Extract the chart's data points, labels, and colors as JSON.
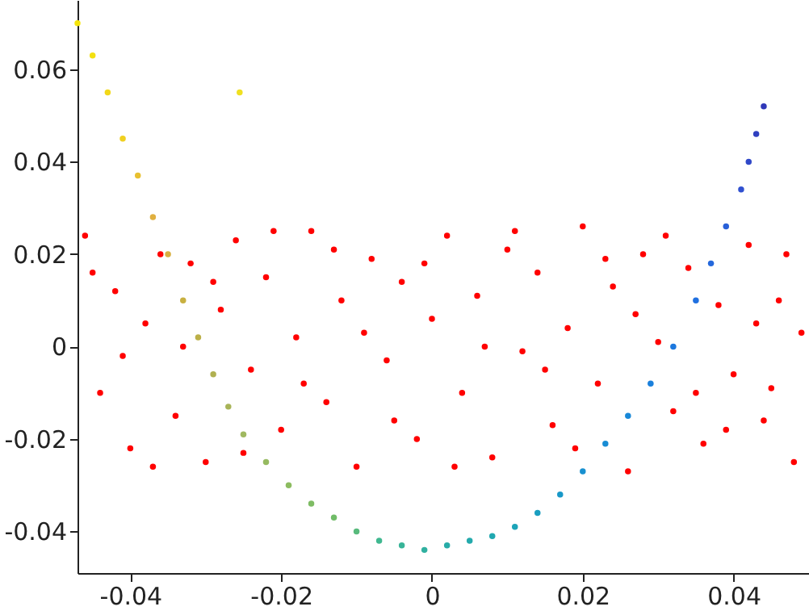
{
  "chart_data": {
    "type": "scatter",
    "xlim": [
      -0.047,
      0.05
    ],
    "ylim": [
      -0.049,
      0.075
    ],
    "xticks": [
      -0.04,
      -0.02,
      0,
      0.02,
      0.04
    ],
    "yticks": [
      -0.04,
      -0.02,
      0,
      0.02,
      0.04,
      0.06
    ],
    "grid": false,
    "marker": "circle",
    "series": [
      {
        "color": "#ff0000",
        "x": [
          -0.046,
          -0.044,
          -0.042,
          -0.04,
          -0.038,
          -0.036,
          -0.034,
          -0.032,
          -0.03,
          -0.028,
          -0.026,
          -0.024,
          -0.022,
          -0.02,
          -0.018,
          -0.016,
          -0.014,
          -0.012,
          -0.01,
          -0.008,
          -0.006,
          -0.004,
          -0.002,
          0.0,
          0.002,
          0.004,
          0.006,
          0.008,
          0.01,
          0.012,
          0.014,
          0.016,
          0.018,
          0.02,
          0.022,
          0.024,
          0.026,
          0.028,
          0.03,
          0.032,
          0.034,
          0.036,
          0.038,
          0.04,
          0.042,
          0.044,
          0.046,
          0.048,
          0.049,
          -0.045,
          -0.041,
          -0.037,
          -0.033,
          -0.029,
          -0.025,
          -0.021,
          -0.017,
          -0.013,
          -0.009,
          -0.005,
          -0.001,
          0.003,
          0.007,
          0.011,
          0.015,
          0.019,
          0.023,
          0.027,
          0.031,
          0.035,
          0.039,
          0.043,
          0.047,
          0.045
        ],
        "values": [
          0.024,
          -0.01,
          0.012,
          -0.022,
          0.005,
          0.02,
          -0.015,
          0.018,
          -0.025,
          0.008,
          0.023,
          -0.005,
          0.015,
          -0.018,
          0.002,
          0.025,
          -0.012,
          0.01,
          -0.026,
          0.019,
          -0.003,
          0.014,
          -0.02,
          0.006,
          0.024,
          -0.01,
          0.011,
          -0.024,
          0.021,
          -0.001,
          0.016,
          -0.017,
          0.004,
          0.026,
          -0.008,
          0.013,
          -0.027,
          0.02,
          0.001,
          -0.014,
          0.017,
          -0.021,
          0.009,
          -0.006,
          0.022,
          -0.016,
          0.01,
          -0.025,
          0.003,
          0.016,
          -0.002,
          -0.026,
          0.0,
          0.014,
          -0.023,
          0.025,
          -0.008,
          0.021,
          0.003,
          -0.016,
          0.018,
          -0.026,
          0.0,
          0.025,
          -0.005,
          -0.022,
          0.019,
          0.007,
          0.024,
          -0.01,
          -0.018,
          0.005,
          0.02,
          -0.009
        ]
      },
      {
        "x": [
          -0.047,
          -0.045,
          -0.043,
          -0.041,
          -0.039,
          -0.037,
          -0.035,
          -0.033,
          -0.031,
          -0.029,
          -0.027,
          -0.025,
          -0.022,
          -0.019,
          -0.016,
          -0.013,
          -0.01,
          -0.007,
          -0.004,
          -0.001,
          0.002,
          0.005,
          0.008,
          0.011,
          0.014,
          0.017,
          0.02,
          0.023,
          0.026,
          0.029,
          0.032,
          0.035,
          0.037,
          0.039,
          0.041,
          0.042,
          0.043,
          0.044,
          -0.0255
        ],
        "values": [
          0.07,
          0.063,
          0.055,
          0.045,
          0.037,
          0.028,
          0.02,
          0.01,
          0.002,
          -0.006,
          -0.013,
          -0.019,
          -0.025,
          -0.03,
          -0.034,
          -0.037,
          -0.04,
          -0.042,
          -0.043,
          -0.044,
          -0.043,
          -0.042,
          -0.041,
          -0.039,
          -0.036,
          -0.032,
          -0.027,
          -0.021,
          -0.015,
          -0.008,
          0.0,
          0.01,
          0.018,
          0.026,
          0.034,
          0.04,
          0.046,
          0.052,
          0.055
        ],
        "colors": [
          "#f5e50a",
          "#f3e010",
          "#f2d818",
          "#f0d020",
          "#e8c030",
          "#e0b040",
          "#d8b040",
          "#c8b040",
          "#bcb048",
          "#b0b050",
          "#a8b458",
          "#a0b860",
          "#96ba60",
          "#8cbc60",
          "#7ebc64",
          "#70bc68",
          "#58ba7c",
          "#40b890",
          "#38b498",
          "#30b0a0",
          "#28aca8",
          "#24aaac",
          "#20a8b0",
          "#1ca4b8",
          "#1a9ec0",
          "#1898c8",
          "#1890d0",
          "#188cd4",
          "#1888d8",
          "#1a80dc",
          "#1c78de",
          "#2070e0",
          "#2468dc",
          "#2860d8",
          "#3050d0",
          "#3048c8",
          "#3040c0",
          "#3038b8",
          "#f0e020"
        ]
      }
    ]
  }
}
